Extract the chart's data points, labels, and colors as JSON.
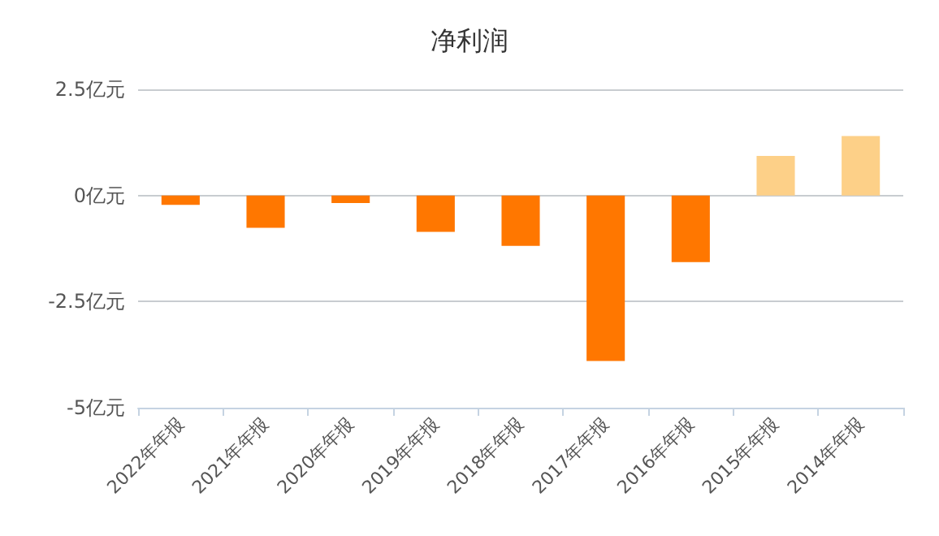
{
  "chart_data": {
    "type": "bar",
    "title": "净利润",
    "categories": [
      "2022年年报",
      "2021年年报",
      "2020年年报",
      "2019年年报",
      "2018年年报",
      "2017年年报",
      "2016年年报",
      "2015年年报",
      "2014年年报"
    ],
    "values": [
      -0.22,
      -0.76,
      -0.18,
      -0.86,
      -1.19,
      -3.9,
      -1.57,
      0.93,
      1.4
    ],
    "colors": [
      "#ff7700",
      "#ff7700",
      "#ff7700",
      "#ff7700",
      "#ff7700",
      "#ff7700",
      "#ff7700",
      "#fdd088",
      "#fdd088"
    ],
    "ylim": [
      -5,
      2.5
    ],
    "yticks": [
      {
        "value": -5,
        "label": "-5亿元"
      },
      {
        "value": -2.5,
        "label": "-2.5亿元"
      },
      {
        "value": 0,
        "label": "0亿元"
      },
      {
        "value": 2.5,
        "label": "2.5亿元"
      }
    ],
    "grid": "y"
  }
}
